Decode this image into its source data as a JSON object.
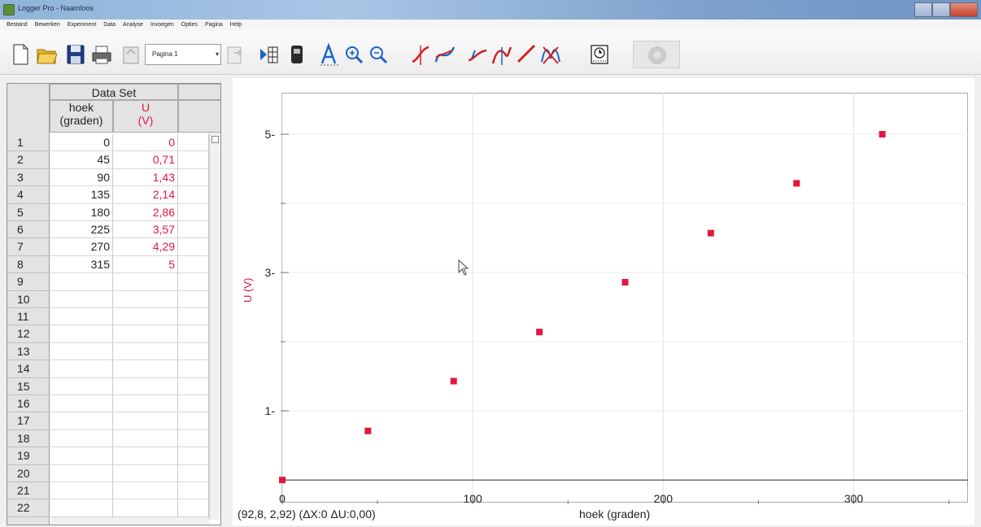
{
  "window": {
    "title": "Logger Pro - Naamloos"
  },
  "menu": [
    "Bestand",
    "Bewerken",
    "Experiment",
    "Data",
    "Analyse",
    "Invoegen",
    "Opties",
    "Pagina",
    "Help"
  ],
  "toolbar": {
    "page_select": "Pagina 1"
  },
  "table": {
    "title": "Data Set",
    "col1": {
      "name": "hoek",
      "unit": "(graden)"
    },
    "col2": {
      "name": "U",
      "unit": "(V)"
    },
    "rows": [
      {
        "n": "1",
        "x": "0",
        "y": "0"
      },
      {
        "n": "2",
        "x": "45",
        "y": "0,71"
      },
      {
        "n": "3",
        "x": "90",
        "y": "1,43"
      },
      {
        "n": "4",
        "x": "135",
        "y": "2,14"
      },
      {
        "n": "5",
        "x": "180",
        "y": "2,86"
      },
      {
        "n": "6",
        "x": "225",
        "y": "3,57"
      },
      {
        "n": "7",
        "x": "270",
        "y": "4,29"
      },
      {
        "n": "8",
        "x": "315",
        "y": "5"
      },
      {
        "n": "9",
        "x": "",
        "y": ""
      },
      {
        "n": "10",
        "x": "",
        "y": ""
      },
      {
        "n": "11",
        "x": "",
        "y": ""
      },
      {
        "n": "12",
        "x": "",
        "y": ""
      },
      {
        "n": "13",
        "x": "",
        "y": ""
      },
      {
        "n": "14",
        "x": "",
        "y": ""
      },
      {
        "n": "15",
        "x": "",
        "y": ""
      },
      {
        "n": "16",
        "x": "",
        "y": ""
      },
      {
        "n": "17",
        "x": "",
        "y": ""
      },
      {
        "n": "18",
        "x": "",
        "y": ""
      },
      {
        "n": "19",
        "x": "",
        "y": ""
      },
      {
        "n": "20",
        "x": "",
        "y": ""
      },
      {
        "n": "21",
        "x": "",
        "y": ""
      },
      {
        "n": "22",
        "x": "",
        "y": ""
      }
    ]
  },
  "graph": {
    "coord_readout": "(92,8, 2,92) (ΔX:0 ΔU:0,00)",
    "xlabel": "hoek (graden)",
    "ylabel": "U (V)"
  },
  "chart_data": {
    "type": "scatter",
    "x": [
      0,
      45,
      90,
      135,
      180,
      225,
      270,
      315
    ],
    "y": [
      0,
      0.71,
      1.43,
      2.14,
      2.86,
      3.57,
      4.29,
      5
    ],
    "xlabel": "hoek (graden)",
    "ylabel": "U (V)",
    "xlim": [
      0,
      360
    ],
    "ylim": [
      -0.35,
      5.6
    ],
    "x_ticks": [
      0,
      100,
      200,
      300
    ],
    "y_ticks": [
      1,
      3,
      5
    ],
    "grid": true,
    "marker_color": "#e3173f"
  }
}
